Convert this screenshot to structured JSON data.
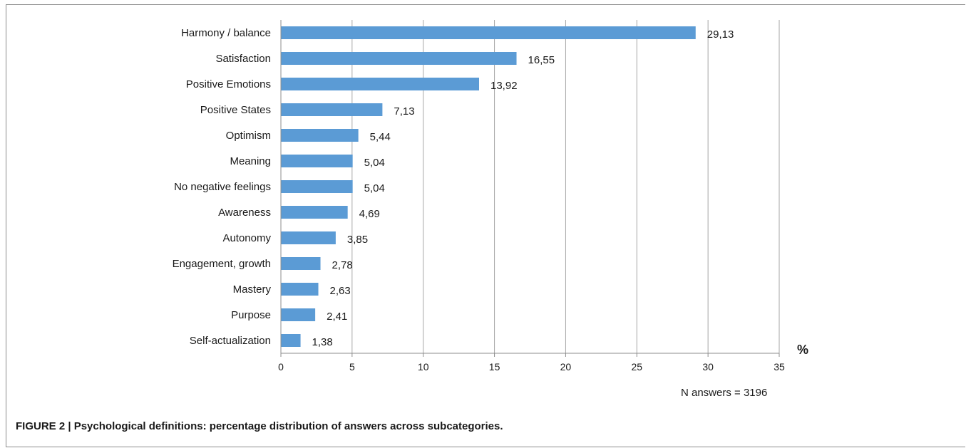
{
  "chart_data": {
    "type": "bar",
    "orientation": "horizontal",
    "categories": [
      "Harmony / balance",
      "Satisfaction",
      "Positive Emotions",
      "Positive States",
      "Optimism",
      "Meaning",
      "No negative feelings",
      "Awareness",
      "Autonomy",
      "Engagement, growth",
      "Mastery",
      "Purpose",
      "Self-actualization"
    ],
    "values": [
      29.13,
      16.55,
      13.92,
      7.13,
      5.44,
      5.04,
      5.04,
      4.69,
      3.85,
      2.78,
      2.63,
      2.41,
      1.38
    ],
    "value_labels": [
      "29,13",
      "16,55",
      "13,92",
      "7,13",
      "5,44",
      "5,04",
      "5,04",
      "4,69",
      "3,85",
      "2,78",
      "2,63",
      "2,41",
      "1,38"
    ],
    "xlim": [
      0,
      35
    ],
    "xticks": [
      0,
      5,
      10,
      15,
      20,
      25,
      30,
      35
    ],
    "xunit": "%",
    "grid": "vertical",
    "bar_color": "#5b9bd5",
    "note": "N answers = 3196"
  },
  "caption": "FIGURE 2 | Psychological definitions: percentage distribution of answers across subcategories."
}
